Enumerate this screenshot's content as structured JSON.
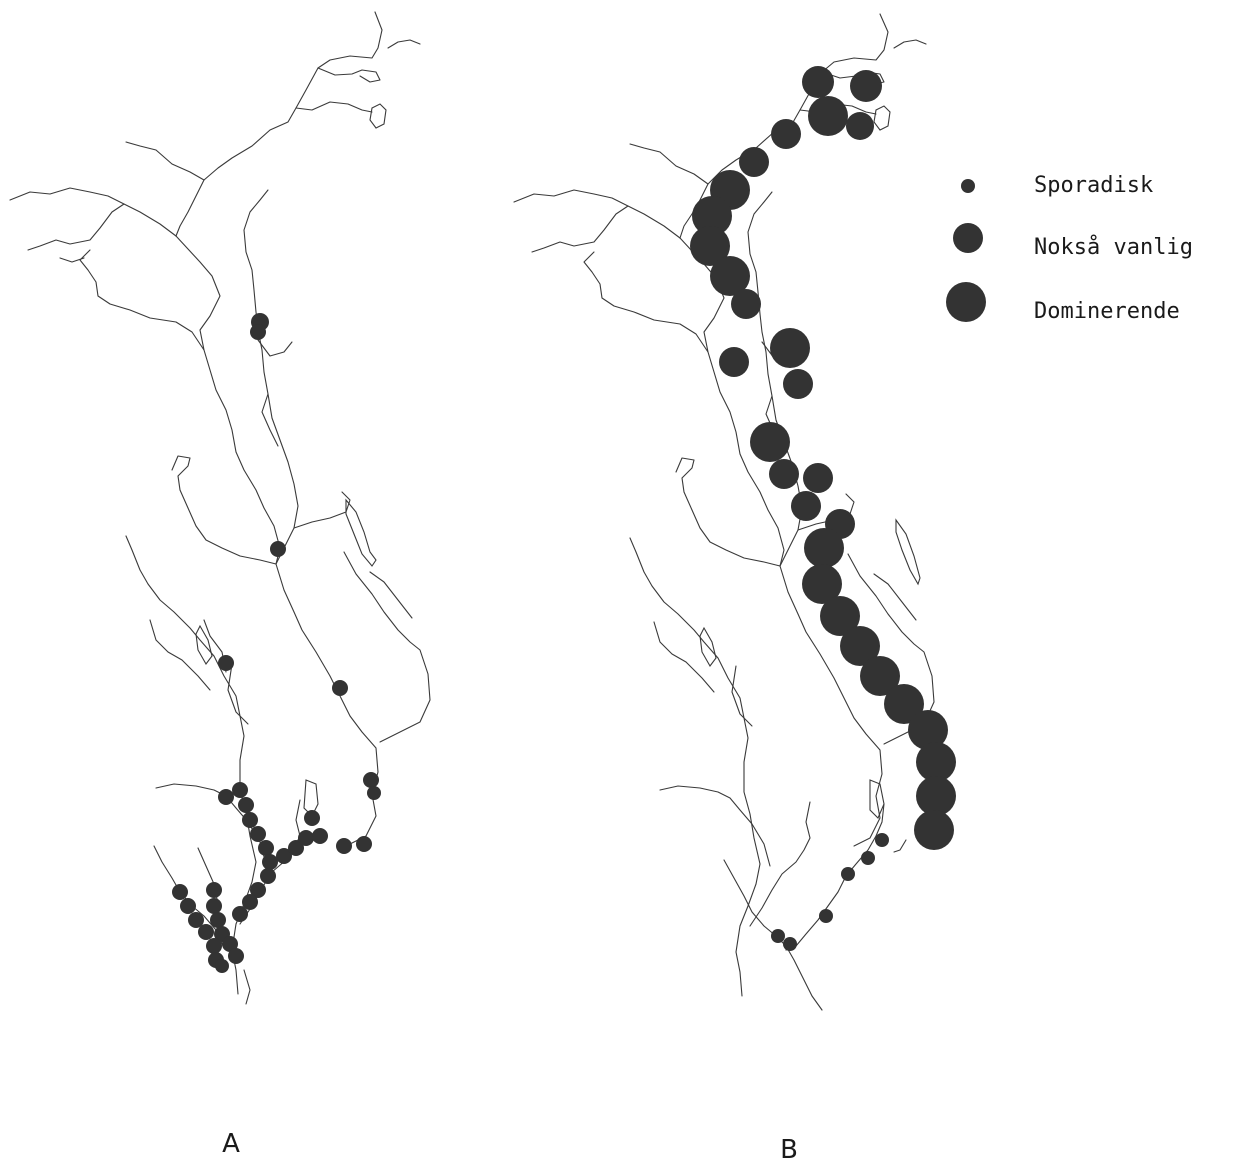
{
  "legend": {
    "items": [
      {
        "label": "Sporadisk",
        "level": 1
      },
      {
        "label": "Nokså vanlig",
        "level": 2
      },
      {
        "label": "Dominerende",
        "level": 3
      }
    ]
  },
  "panels": [
    {
      "label": "A"
    },
    {
      "label": "B"
    }
  ],
  "colors": {
    "dot": "#333333",
    "line": "#3a3a3a",
    "background": "#ffffff"
  },
  "occurrence": {
    "A": {
      "levels": [
        "Sporadisk"
      ]
    },
    "B": {
      "levels": [
        "Sporadisk",
        "Nokså vanlig",
        "Dominerende"
      ]
    }
  }
}
